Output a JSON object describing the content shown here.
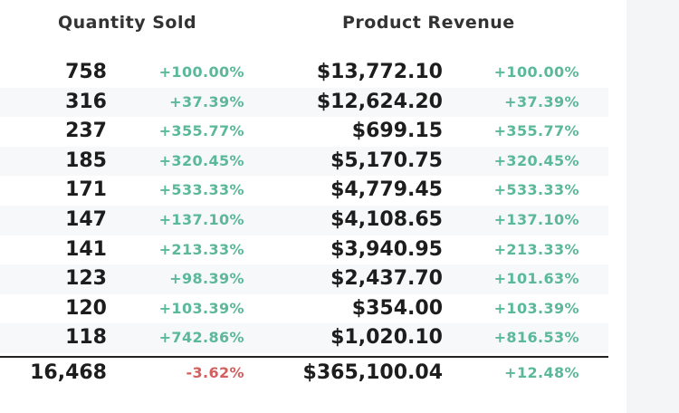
{
  "headers": {
    "quantity_sold": "Quantity Sold",
    "product_revenue": "Product Revenue"
  },
  "rows": [
    {
      "qty": "758",
      "qty_change": "+100.00%",
      "revenue": "$13,772.10",
      "revenue_change": "+100.00%"
    },
    {
      "qty": "316",
      "qty_change": "+37.39%",
      "revenue": "$12,624.20",
      "revenue_change": "+37.39%"
    },
    {
      "qty": "237",
      "qty_change": "+355.77%",
      "revenue": "$699.15",
      "revenue_change": "+355.77%"
    },
    {
      "qty": "185",
      "qty_change": "+320.45%",
      "revenue": "$5,170.75",
      "revenue_change": "+320.45%"
    },
    {
      "qty": "171",
      "qty_change": "+533.33%",
      "revenue": "$4,779.45",
      "revenue_change": "+533.33%"
    },
    {
      "qty": "147",
      "qty_change": "+137.10%",
      "revenue": "$4,108.65",
      "revenue_change": "+137.10%"
    },
    {
      "qty": "141",
      "qty_change": "+213.33%",
      "revenue": "$3,940.95",
      "revenue_change": "+213.33%"
    },
    {
      "qty": "123",
      "qty_change": "+98.39%",
      "revenue": "$2,437.70",
      "revenue_change": "+101.63%"
    },
    {
      "qty": "120",
      "qty_change": "+103.39%",
      "revenue": "$354.00",
      "revenue_change": "+103.39%"
    },
    {
      "qty": "118",
      "qty_change": "+742.86%",
      "revenue": "$1,020.10",
      "revenue_change": "+816.53%"
    }
  ],
  "total": {
    "qty": "16,468",
    "qty_change": "-3.62%",
    "revenue": "$365,100.04",
    "revenue_change": "+12.48%"
  },
  "colors": {
    "positive": "#5bb89a",
    "negative": "#d35f5f"
  }
}
